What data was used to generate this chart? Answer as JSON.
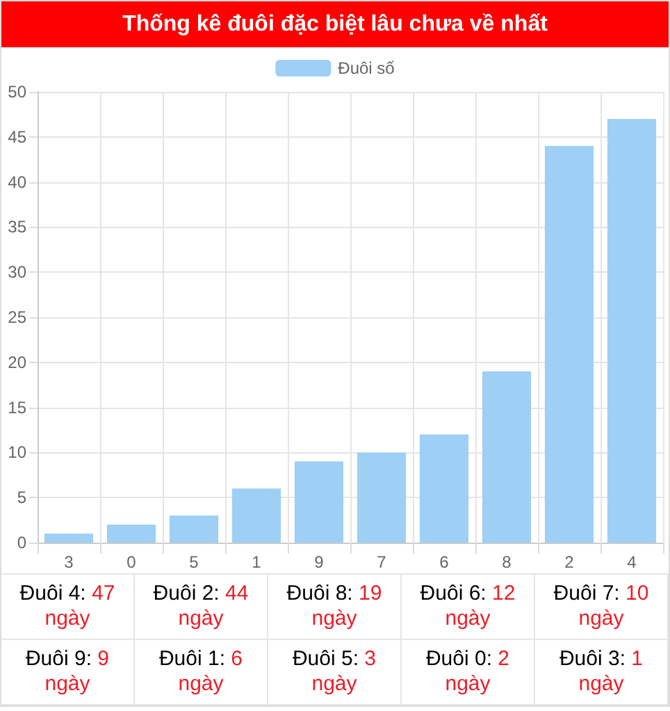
{
  "chart_data": {
    "type": "bar",
    "title": "Thống kê đuôi đặc biệt lâu chưa về nhất",
    "categories": [
      "3",
      "0",
      "5",
      "1",
      "9",
      "7",
      "6",
      "8",
      "2",
      "4"
    ],
    "series": [
      {
        "name": "Đuôi số",
        "color": "#9ecff5",
        "values": [
          1,
          2,
          3,
          6,
          9,
          10,
          12,
          19,
          44,
          47
        ]
      }
    ],
    "value_labels": [
      "Đuôi 3: 1 ngày",
      "Đuôi 0: 2 ngày",
      "Đuôi 5: 3 ngày",
      "Đuôi 1: 6 ngày",
      "Đuôi 9: 9 ngày",
      "Đuôi 7: 10 ngày",
      "Đuôi 6: 12 ngày",
      "Đuôi 8: 19 ngày",
      "Đuôi 2: 44 ngày",
      "Đuôi 4: 47 ngày"
    ],
    "ylim": [
      0,
      50
    ],
    "yticks": [
      0,
      5,
      10,
      15,
      20,
      25,
      30,
      35,
      40,
      45,
      50
    ],
    "grid": true,
    "legend": "top"
  }
}
